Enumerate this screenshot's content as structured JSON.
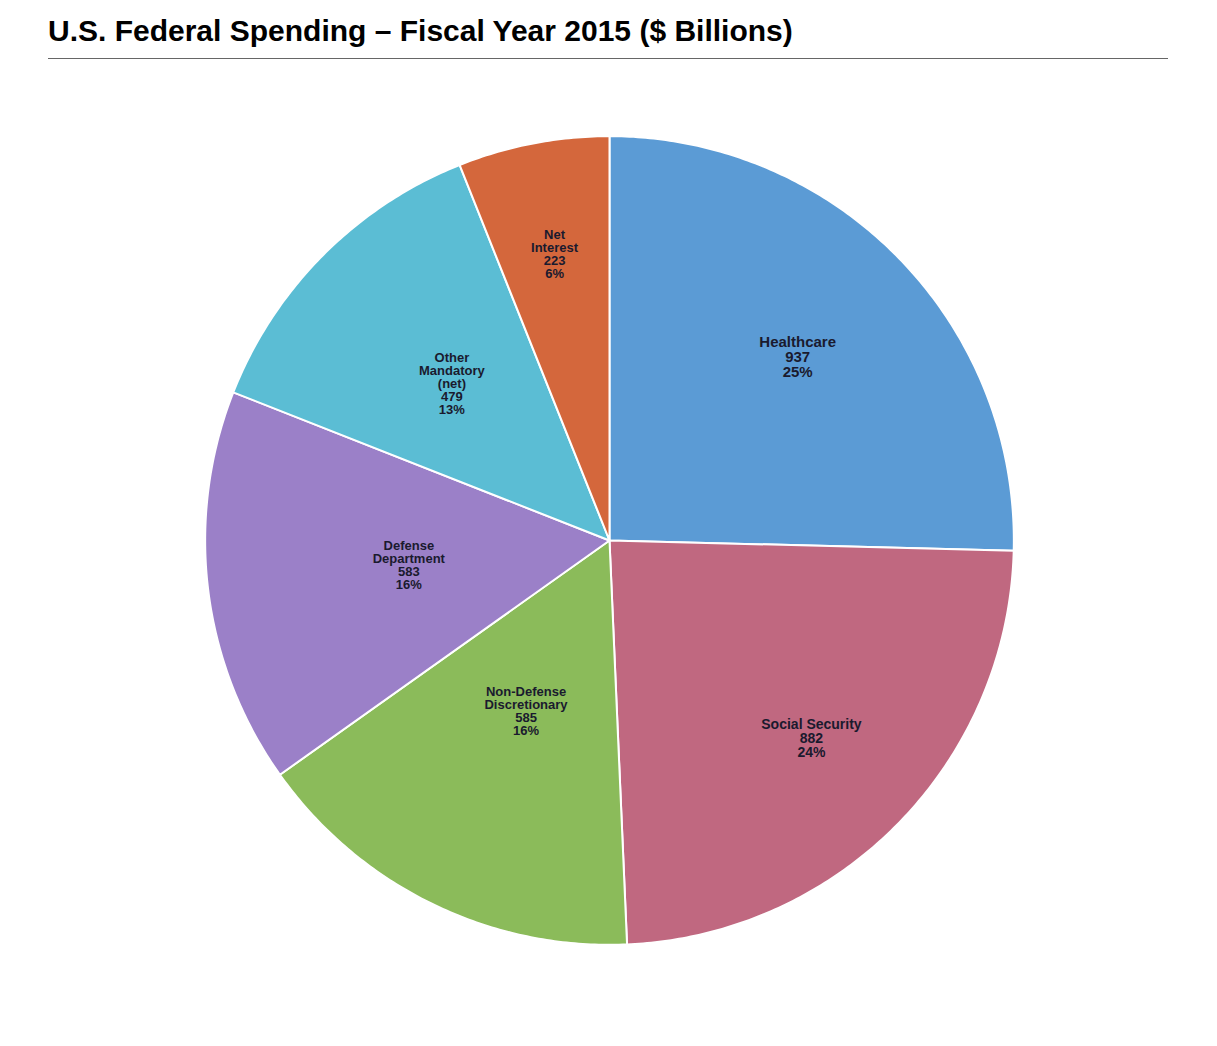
{
  "chart_data": {
    "type": "pie",
    "title": "U.S. Federal Spending – Fiscal Year 2015 ($ Billions)",
    "categories": [
      "Healthcare",
      "Social Security",
      "Non-Defense\nDiscretionary",
      "Defense\nDepartment",
      "Other\nMandatory\n(net)",
      "Net\nInterest"
    ],
    "values": [
      937,
      882,
      585,
      583,
      479,
      223
    ],
    "shares": [
      25,
      24,
      16,
      16,
      13,
      6
    ],
    "share_labels": [
      "25%",
      "24%",
      "16%",
      "16%",
      "13%",
      "6%"
    ],
    "colors": [
      "#5B9BD5",
      "#C06880",
      "#8BBB5A",
      "#9B80C8",
      "#5BBDD4",
      "#D4673C"
    ],
    "data_labels": true
  }
}
